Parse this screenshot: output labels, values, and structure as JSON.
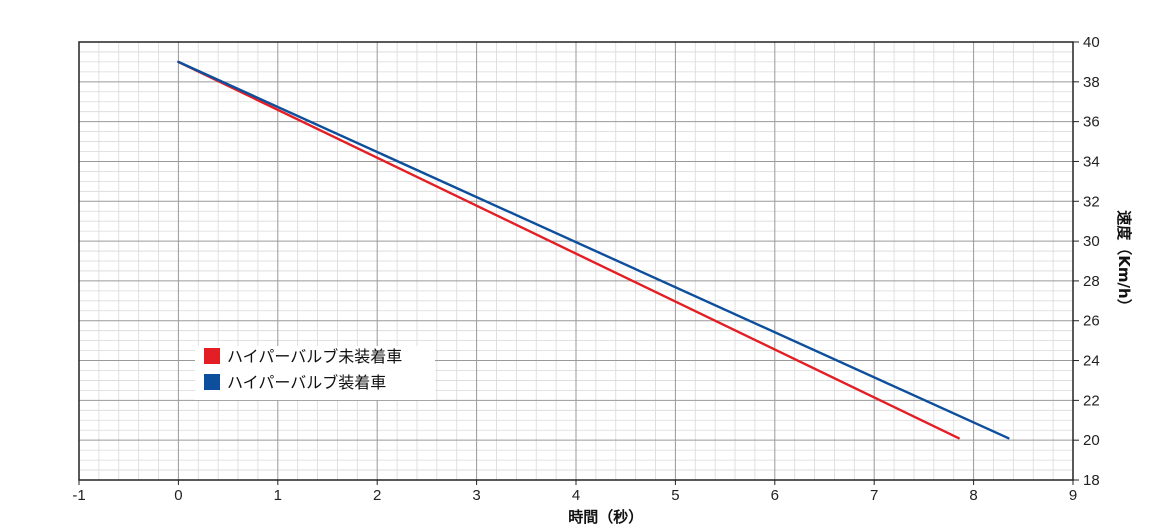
{
  "chart_data": {
    "type": "line",
    "title": "",
    "xlabel": "時間（秒）",
    "ylabel": "速度（Km/h）",
    "xlim": [
      -1,
      9
    ],
    "ylim": [
      18,
      40
    ],
    "x_ticks": [
      "-1",
      "0",
      "1",
      "2",
      "3",
      "4",
      "5",
      "6",
      "7",
      "8",
      "9"
    ],
    "y_ticks": [
      "18",
      "20",
      "22",
      "24",
      "26",
      "28",
      "30",
      "32",
      "34",
      "36",
      "38",
      "40"
    ],
    "grid": true,
    "y_axis_position": "right",
    "legend_position": "lower-left",
    "series": [
      {
        "name": "ハイパーバルブ未装着車",
        "color": "#e31e24",
        "x": [
          0,
          7.85
        ],
        "y": [
          39,
          20.1
        ]
      },
      {
        "name": "ハイパーバルブ装着車",
        "color": "#0d4f9c",
        "x": [
          0,
          8.35
        ],
        "y": [
          39,
          20.1
        ]
      }
    ]
  }
}
